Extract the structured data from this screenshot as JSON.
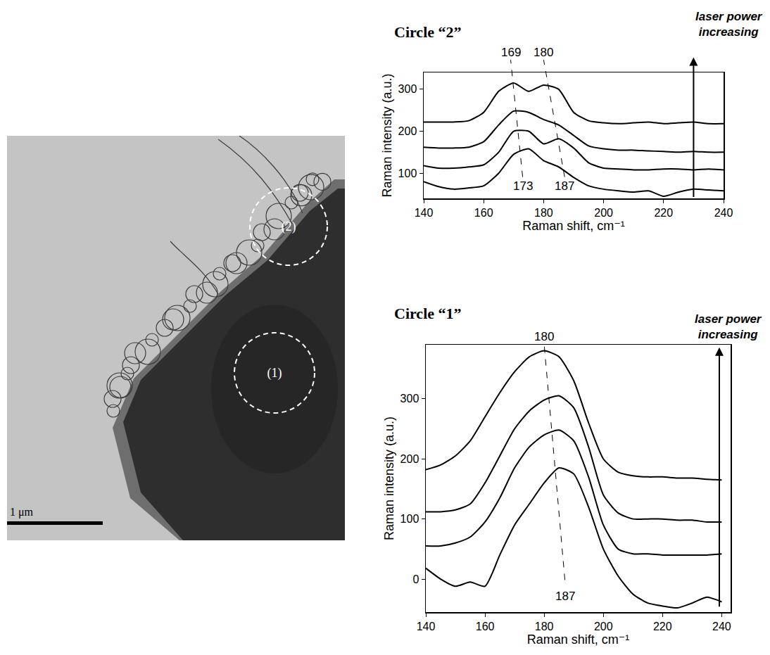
{
  "image": {
    "circles": [
      "(2)",
      "(1)"
    ],
    "scale_bar": "1 μm"
  },
  "chart_data": [
    {
      "type": "line",
      "title": "Circle “2”",
      "x_label": "Raman shift, cm⁻¹",
      "y_label": "Raman intensity (a.u.)",
      "annotation": "laser power increasing",
      "peak_shifts": [
        {
          "from": 173,
          "to": 169
        },
        {
          "from": 187,
          "to": 180
        }
      ],
      "color": "#000000",
      "grid": false,
      "xlim": [
        140,
        240
      ],
      "xticks": [
        140,
        160,
        180,
        200,
        220,
        240
      ],
      "ylim": [
        40,
        340
      ],
      "yticks": [
        100,
        200,
        300
      ],
      "x": [
        140,
        145,
        150,
        155,
        160,
        165,
        170,
        175,
        180,
        185,
        190,
        195,
        200,
        205,
        210,
        215,
        220,
        225,
        230,
        235,
        240
      ],
      "series": [
        {
          "values": [
            80,
            68,
            62,
            65,
            70,
            100,
            145,
            158,
            130,
            115,
            90,
            70,
            62,
            58,
            55,
            58,
            45,
            55,
            62,
            60,
            58
          ]
        },
        {
          "values": [
            118,
            112,
            112,
            115,
            120,
            150,
            200,
            200,
            170,
            182,
            160,
            125,
            112,
            110,
            108,
            108,
            110,
            110,
            108,
            110,
            108
          ]
        },
        {
          "values": [
            162,
            160,
            160,
            162,
            175,
            215,
            248,
            245,
            228,
            215,
            190,
            165,
            158,
            155,
            155,
            153,
            152,
            150,
            152,
            150,
            150
          ]
        },
        {
          "values": [
            222,
            222,
            222,
            225,
            245,
            295,
            315,
            295,
            310,
            300,
            245,
            225,
            220,
            218,
            220,
            222,
            218,
            220,
            222,
            218,
            218
          ]
        }
      ]
    },
    {
      "type": "line",
      "title": "Circle “1”",
      "x_label": "Raman shift, cm⁻¹",
      "y_label": "Raman intensity (a.u.)",
      "annotation": "laser power increasing",
      "peak_shifts": [
        {
          "from": 187,
          "to": 180
        }
      ],
      "color": "#000000",
      "grid": false,
      "xlim": [
        140,
        243
      ],
      "xticks": [
        140,
        160,
        180,
        200,
        220,
        240
      ],
      "ylim": [
        -55,
        390
      ],
      "yticks": [
        0,
        100,
        200,
        300
      ],
      "x": [
        140,
        145,
        150,
        155,
        160,
        165,
        170,
        175,
        180,
        185,
        190,
        195,
        200,
        205,
        210,
        215,
        220,
        225,
        230,
        235,
        240
      ],
      "series": [
        {
          "values": [
            18,
            0,
            -12,
            -5,
            -12,
            40,
            90,
            125,
            160,
            185,
            175,
            120,
            50,
            5,
            -25,
            -40,
            -45,
            -48,
            -40,
            -30,
            -38
          ]
        },
        {
          "values": [
            55,
            55,
            60,
            70,
            95,
            135,
            185,
            220,
            240,
            248,
            230,
            170,
            90,
            50,
            42,
            42,
            40,
            40,
            40,
            40,
            42
          ]
        },
        {
          "values": [
            112,
            112,
            115,
            125,
            160,
            205,
            250,
            280,
            298,
            305,
            285,
            220,
            140,
            110,
            100,
            100,
            100,
            98,
            98,
            95,
            95
          ]
        },
        {
          "values": [
            182,
            190,
            205,
            230,
            270,
            310,
            345,
            370,
            380,
            370,
            330,
            260,
            200,
            178,
            172,
            170,
            170,
            168,
            168,
            166,
            165
          ]
        }
      ]
    }
  ]
}
